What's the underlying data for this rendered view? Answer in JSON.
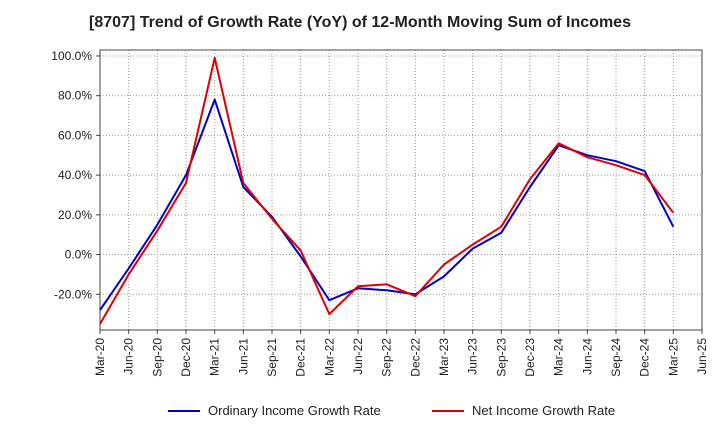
{
  "chart_data": {
    "type": "line",
    "title": "[8707]  Trend of Growth Rate (YoY) of 12-Month Moving Sum of Incomes",
    "xlabel": "",
    "ylabel": "",
    "x_ticks": [
      "Mar-20",
      "Jun-20",
      "Sep-20",
      "Dec-20",
      "Mar-21",
      "Jun-21",
      "Sep-21",
      "Dec-21",
      "Mar-22",
      "Jun-22",
      "Sep-22",
      "Dec-22",
      "Mar-23",
      "Jun-23",
      "Sep-23",
      "Dec-23",
      "Mar-24",
      "Jun-24",
      "Sep-24",
      "Dec-24",
      "Mar-25",
      "Jun-25"
    ],
    "y_ticks": [
      "100.0%",
      "80.0%",
      "60.0%",
      "40.0%",
      "20.0%",
      "0.0%",
      "-20.0%"
    ],
    "y_tick_values": [
      100,
      80,
      60,
      40,
      20,
      0,
      -20
    ],
    "ylim": [
      -38,
      103
    ],
    "grid": true,
    "legend_position": "bottom",
    "categories": [
      "Mar-20",
      "Jun-20",
      "Sep-20",
      "Dec-20",
      "Mar-21",
      "Jun-21",
      "Sep-21",
      "Dec-21",
      "Mar-22",
      "Jun-22",
      "Sep-22",
      "Dec-22",
      "Mar-23",
      "Jun-23",
      "Sep-23",
      "Dec-23",
      "Mar-24",
      "Jun-24",
      "Sep-24",
      "Dec-24",
      "Mar-25"
    ],
    "series": [
      {
        "name": "Ordinary Income Growth Rate",
        "color": "#0000cc",
        "values": [
          -28,
          -7,
          15,
          40,
          78,
          34,
          19,
          -1,
          -23,
          -17,
          -18,
          -20,
          -11,
          3,
          11,
          34,
          55,
          50,
          47,
          42,
          14
        ]
      },
      {
        "name": "Net Income Growth Rate",
        "color": "#e00000",
        "values": [
          -35,
          -10,
          12,
          36,
          99,
          36,
          18,
          2,
          -30,
          -16,
          -15,
          -21,
          -5,
          5,
          14,
          38,
          56,
          49,
          45,
          40,
          21
        ]
      }
    ]
  }
}
